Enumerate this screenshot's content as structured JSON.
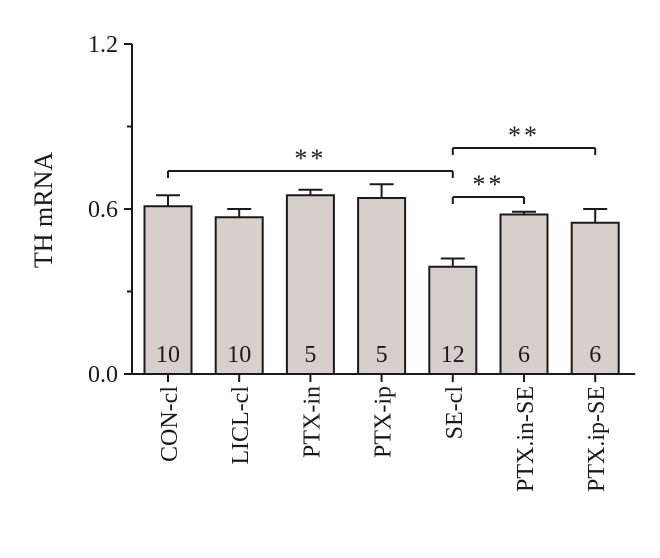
{
  "chart_data": {
    "type": "bar",
    "categories": [
      "CON-cl",
      "LICL-cl",
      "PTX-in",
      "PTX-ip",
      "SE-cl",
      "PTX.in-SE",
      "PTX.ip-SE"
    ],
    "values": [
      0.61,
      0.57,
      0.65,
      0.64,
      0.39,
      0.58,
      0.55
    ],
    "errors": [
      0.04,
      0.03,
      0.02,
      0.05,
      0.03,
      0.01,
      0.05
    ],
    "n_labels": [
      "10",
      "10",
      "5",
      "5",
      "12",
      "6",
      "6"
    ],
    "ylabel": "TH mRNA",
    "xlabel": "",
    "title": "",
    "ylim": [
      0.0,
      1.2
    ],
    "y_ticks": [
      0.0,
      0.6,
      1.2
    ],
    "y_tick_labels": [
      "0.0",
      "0.6",
      "1.2"
    ],
    "y_minor_ticks": [
      0.3,
      0.9
    ],
    "grid": false,
    "bar_color": "#d6cfcc",
    "edge_color": "#1a1a1a",
    "significance": [
      {
        "from": 0,
        "to": 4,
        "label": "**"
      },
      {
        "from": 4,
        "to": 5,
        "label": "**"
      },
      {
        "from": 4,
        "to": 6,
        "label": "**"
      }
    ]
  }
}
